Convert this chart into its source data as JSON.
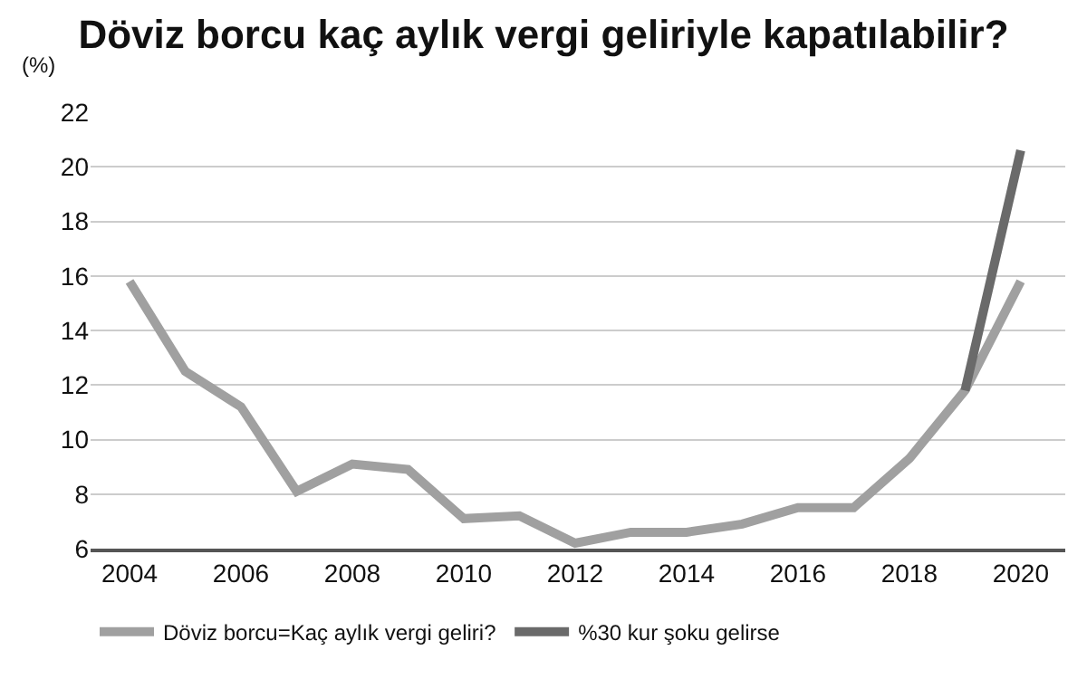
{
  "chart_data": {
    "type": "line",
    "title": "Döviz borcu kaç aylık vergi geliriyle kapatılabilir?",
    "ylabel": "(%)",
    "x": [
      2004,
      2005,
      2006,
      2007,
      2008,
      2009,
      2010,
      2011,
      2012,
      2013,
      2014,
      2015,
      2016,
      2017,
      2018,
      2019,
      2020
    ],
    "series": [
      {
        "name": "Döviz borcu=Kaç aylık vergi geliri?",
        "color": "#a0a0a0",
        "values": [
          15.8,
          12.5,
          11.2,
          8.1,
          9.1,
          8.9,
          7.1,
          7.2,
          6.2,
          6.6,
          6.6,
          6.9,
          7.5,
          7.5,
          9.3,
          11.8,
          15.8
        ]
      },
      {
        "name": "%30 kur şoku gelirse",
        "color": "#6a6a6a",
        "x": [
          2019,
          2020
        ],
        "values": [
          11.8,
          20.6
        ]
      }
    ],
    "xlim": [
      2003.3,
      2020.8
    ],
    "xticks": [
      2004,
      2006,
      2008,
      2010,
      2012,
      2014,
      2016,
      2018,
      2020
    ],
    "ylim": [
      6,
      22
    ],
    "yticks": [
      6,
      8,
      10,
      12,
      14,
      16,
      18,
      20,
      22
    ],
    "grid": "y",
    "legend": "bottom",
    "marker": "none",
    "line_style": "solid"
  }
}
